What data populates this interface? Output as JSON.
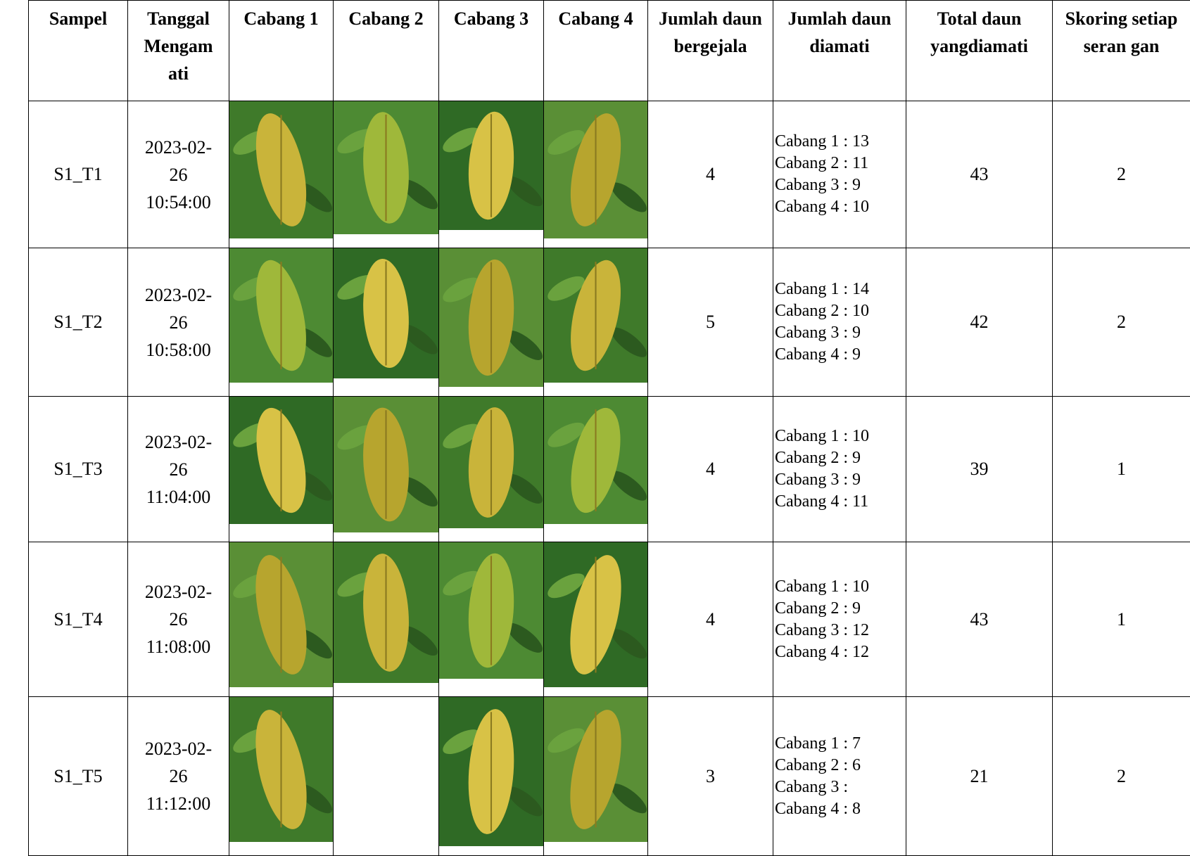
{
  "table": {
    "header": [
      "Sampel",
      "Tanggal Mengam ati",
      "Cabang 1",
      "Cabang 2",
      "Cabang 3",
      "Cabang 4",
      "Jumlah daun bergejala",
      "Jumlah daun diamati",
      "Total daun yangdiamati",
      "Skoring setiap seran gan"
    ],
    "rows": [
      {
        "sampel": "S1_T1",
        "tanggal": "2023-02-26 10:54:00",
        "bergejala": "4",
        "diamati": [
          "Cabang 1 : 13",
          "Cabang 2 : 11",
          "Cabang 3 : 9",
          "Cabang 4 : 10"
        ],
        "total": "43",
        "skoring": "2"
      },
      {
        "sampel": "S1_T2",
        "tanggal": "2023-02-26 10:58:00",
        "bergejala": "5",
        "diamati": [
          "Cabang 1 : 14",
          "Cabang 2 : 10",
          "Cabang 3 : 9",
          "Cabang 4 : 9"
        ],
        "total": "42",
        "skoring": "2"
      },
      {
        "sampel": "S1_T3",
        "tanggal": "2023-02-26 11:04:00",
        "bergejala": "4",
        "diamati": [
          "Cabang 1 : 10",
          "Cabang 2 : 9",
          "Cabang 3 : 9",
          "Cabang 4 : 11"
        ],
        "total": "39",
        "skoring": "1"
      },
      {
        "sampel": "S1_T4",
        "tanggal": "2023-02-26 11:08:00",
        "bergejala": "4",
        "diamati": [
          "Cabang 1 : 10",
          "Cabang 2 : 9",
          "Cabang 3 : 12",
          "Cabang 4 : 12"
        ],
        "total": "43",
        "skoring": "1"
      },
      {
        "sampel": "S1_T5",
        "tanggal": "2023-02-26 11:12:00",
        "bergejala": "3",
        "diamati": [
          "Cabang 1 : 7",
          "Cabang 2 : 6",
          "Cabang 3 :",
          "Cabang 4 : 8"
        ],
        "total": "21",
        "skoring": "2"
      }
    ]
  }
}
